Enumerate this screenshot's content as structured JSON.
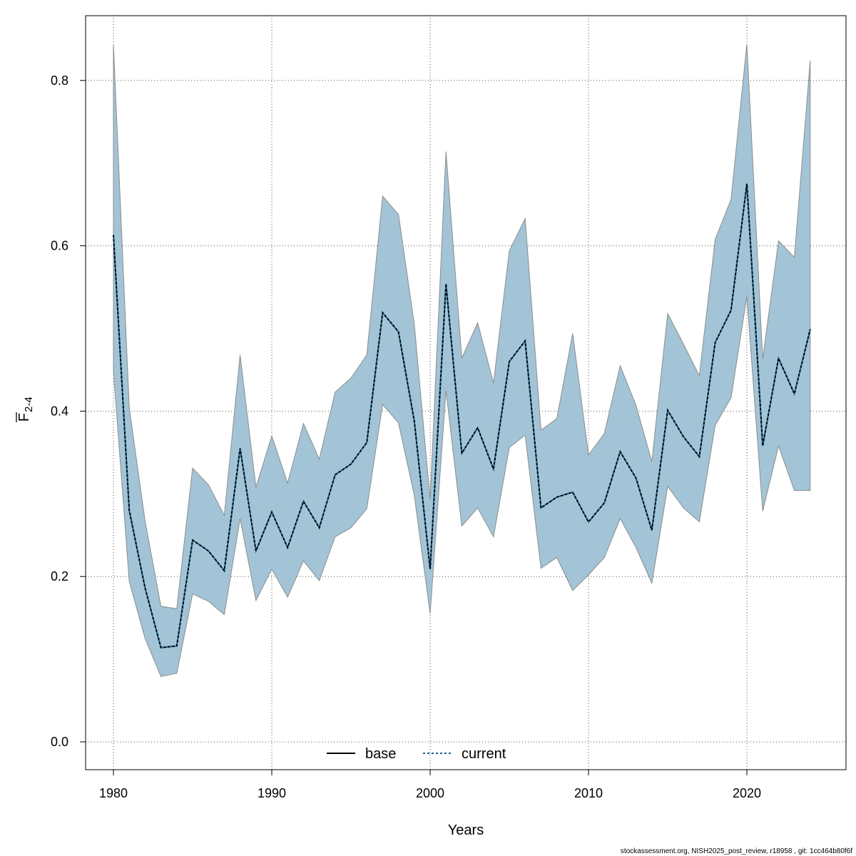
{
  "chart_data": {
    "type": "area",
    "title": "",
    "xlabel": "Years",
    "ylabel_main": "F",
    "ylabel_sub": "2-4",
    "xlim": [
      1978.2,
      2025.9
    ],
    "ylim": [
      -0.03,
      0.875
    ],
    "xticks": [
      1980,
      1990,
      2000,
      2010,
      2020
    ],
    "yticks": [
      "0.0",
      "0.2",
      "0.4",
      "0.6",
      "0.8"
    ],
    "yticks_values": [
      0.0,
      0.2,
      0.4,
      0.6,
      0.8
    ],
    "grid": true,
    "legend": {
      "placement": "bottom-center",
      "entries": [
        {
          "name": "base",
          "style": "solid",
          "color": "#000000"
        },
        {
          "name": "current",
          "style": "dotted",
          "color": "#1f5f8b"
        }
      ]
    },
    "colors": {
      "band_fill": "#a3c4d6",
      "band_stroke": "#8c8c8c"
    },
    "x": [
      1980,
      1981,
      1982,
      1983,
      1984,
      1985,
      1986,
      1987,
      1988,
      1989,
      1990,
      1991,
      1992,
      1993,
      1994,
      1995,
      1996,
      1997,
      1998,
      1999,
      2000,
      2001,
      2002,
      2003,
      2004,
      2005,
      2006,
      2007,
      2008,
      2009,
      2010,
      2011,
      2012,
      2013,
      2014,
      2015,
      2016,
      2017,
      2018,
      2019,
      2020,
      2021,
      2022,
      2023,
      2024
    ],
    "series": [
      {
        "name": "base",
        "values": [
          0.613,
          0.28,
          0.186,
          0.114,
          0.116,
          0.244,
          0.231,
          0.207,
          0.355,
          0.231,
          0.278,
          0.235,
          0.291,
          0.259,
          0.323,
          0.336,
          0.362,
          0.519,
          0.496,
          0.388,
          0.209,
          0.554,
          0.349,
          0.38,
          0.33,
          0.46,
          0.485,
          0.283,
          0.296,
          0.302,
          0.266,
          0.289,
          0.351,
          0.319,
          0.256,
          0.401,
          0.369,
          0.345,
          0.483,
          0.522,
          0.675,
          0.358,
          0.464,
          0.421,
          0.499
        ]
      },
      {
        "name": "current",
        "values": [
          0.613,
          0.28,
          0.186,
          0.114,
          0.116,
          0.244,
          0.231,
          0.207,
          0.355,
          0.231,
          0.278,
          0.235,
          0.291,
          0.259,
          0.323,
          0.336,
          0.362,
          0.519,
          0.496,
          0.388,
          0.209,
          0.554,
          0.349,
          0.38,
          0.33,
          0.46,
          0.485,
          0.283,
          0.296,
          0.302,
          0.266,
          0.289,
          0.351,
          0.319,
          0.256,
          0.401,
          0.369,
          0.345,
          0.483,
          0.522,
          0.675,
          0.358,
          0.464,
          0.421,
          0.499
        ]
      }
    ],
    "upper": [
      0.844,
      0.404,
      0.267,
      0.164,
      0.161,
      0.331,
      0.311,
      0.274,
      0.468,
      0.308,
      0.37,
      0.313,
      0.385,
      0.342,
      0.423,
      0.44,
      0.468,
      0.66,
      0.638,
      0.505,
      0.293,
      0.714,
      0.464,
      0.507,
      0.434,
      0.594,
      0.633,
      0.377,
      0.391,
      0.494,
      0.347,
      0.373,
      0.455,
      0.407,
      0.339,
      0.518,
      0.481,
      0.443,
      0.608,
      0.656,
      0.844,
      0.463,
      0.606,
      0.586,
      0.824
    ],
    "lower": [
      0.449,
      0.194,
      0.125,
      0.079,
      0.083,
      0.179,
      0.17,
      0.154,
      0.27,
      0.171,
      0.209,
      0.175,
      0.219,
      0.195,
      0.248,
      0.259,
      0.282,
      0.408,
      0.386,
      0.298,
      0.155,
      0.425,
      0.261,
      0.283,
      0.248,
      0.356,
      0.371,
      0.21,
      0.223,
      0.183,
      0.202,
      0.223,
      0.27,
      0.235,
      0.192,
      0.309,
      0.283,
      0.266,
      0.383,
      0.416,
      0.539,
      0.279,
      0.358,
      0.304,
      0.304
    ]
  },
  "footer": "stockassessment.org, NISH2025_post_review, r18958 , git: 1cc464b80f6f"
}
